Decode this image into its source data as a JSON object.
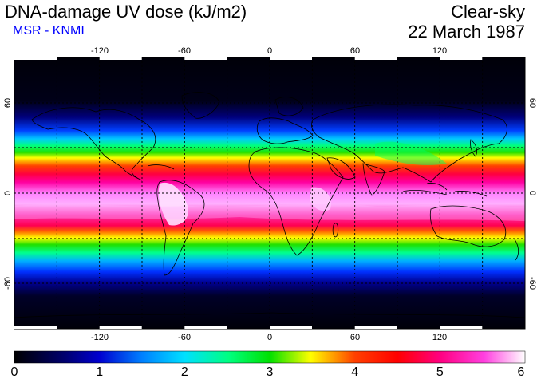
{
  "header": {
    "title": "DNA-damage UV dose (kJ/m2)",
    "subtitle": "MSR - KNMI",
    "sky": "Clear-sky",
    "date": "22 March 1987"
  },
  "map": {
    "lon_ticks": [
      "-120",
      "-60",
      "0",
      "60",
      "120"
    ],
    "lat_ticks_left": [
      "60",
      "0",
      "-60"
    ],
    "lat_ticks_right": [
      "60",
      "0",
      "-60"
    ],
    "colorbar_labels": [
      "0",
      "1",
      "2",
      "3",
      "4",
      "5",
      "6"
    ],
    "colorbar_range": [
      0,
      6
    ],
    "colors": {
      "c0": "#000010",
      "c1": "#0000c0",
      "c2": "#00c8ff",
      "c3": "#00e000",
      "c35": "#ffff00",
      "c4": "#ff0000",
      "c45": "#ff0060",
      "c5": "#ff00a0",
      "c6": "#ffffff"
    }
  }
}
